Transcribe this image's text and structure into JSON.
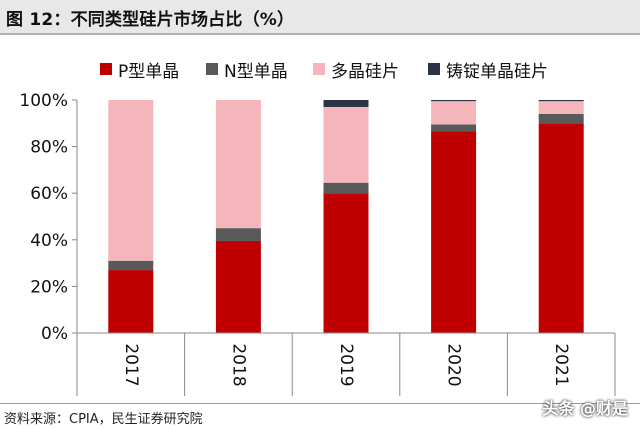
{
  "title": "图 12：不同类型硅片市场占比（%）",
  "source": "资料来源：CPIA，民生证券研究院",
  "watermark": "头条 @财是",
  "chart_data": {
    "type": "bar",
    "stacked": true,
    "title": "图 12：不同类型硅片市场占比（%）",
    "xlabel": "",
    "ylabel": "",
    "categories": [
      "2017",
      "2018",
      "2019",
      "2020",
      "2021"
    ],
    "ylim": [
      0,
      100
    ],
    "yticks": [
      0,
      20,
      40,
      60,
      80,
      100
    ],
    "ytick_labels": [
      "0%",
      "20%",
      "40%",
      "60%",
      "80%",
      "100%"
    ],
    "grid": false,
    "legend_position": "top",
    "series": [
      {
        "name": "P型单晶",
        "color": "#c00000",
        "values": [
          27,
          39.5,
          60,
          86.5,
          90
        ]
      },
      {
        "name": "N型单晶",
        "color": "#595959",
        "values": [
          4,
          5.5,
          4.5,
          3,
          4
        ]
      },
      {
        "name": "多晶硅片",
        "color": "#f4b6bb",
        "values": [
          69,
          55,
          32.5,
          10,
          5.5
        ]
      },
      {
        "name": "铸锭单晶硅片",
        "color": "#2a3444",
        "values": [
          0,
          0,
          3,
          0.5,
          0.5
        ]
      }
    ]
  }
}
